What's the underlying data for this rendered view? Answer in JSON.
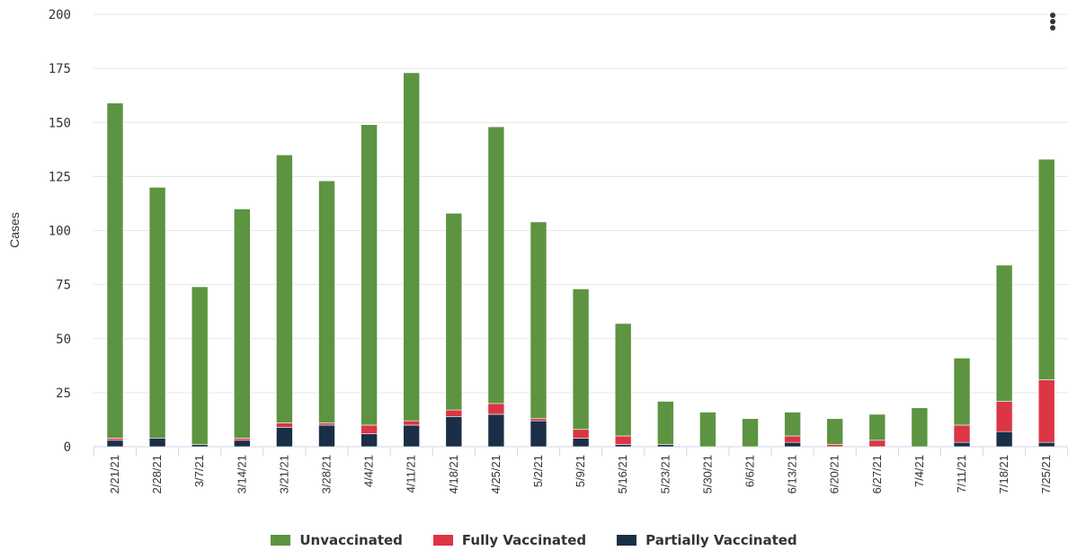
{
  "chart_data": {
    "type": "bar",
    "stacked": true,
    "title": "",
    "xlabel": "",
    "ylabel": "Cases",
    "ylim": [
      0,
      200
    ],
    "yticks": [
      0,
      25,
      50,
      75,
      100,
      125,
      150,
      175,
      200
    ],
    "grid": true,
    "legend_position": "bottom-center",
    "categories": [
      "2/21/21",
      "2/28/21",
      "3/7/21",
      "3/14/21",
      "3/21/21",
      "3/28/21",
      "4/4/21",
      "4/11/21",
      "4/18/21",
      "4/25/21",
      "5/2/21",
      "5/9/21",
      "5/16/21",
      "5/23/21",
      "5/30/21",
      "6/6/21",
      "6/13/21",
      "6/20/21",
      "6/27/21",
      "7/4/21",
      "7/11/21",
      "7/18/21",
      "7/25/21"
    ],
    "series": [
      {
        "name": "Partially Vaccinated",
        "color": "#1a2f47",
        "values": [
          3,
          4,
          1,
          3,
          9,
          10,
          6,
          10,
          14,
          15,
          12,
          4,
          1,
          1,
          0,
          0,
          2,
          0,
          0,
          0,
          2,
          7,
          2
        ]
      },
      {
        "name": "Fully Vaccinated",
        "color": "#dc3545",
        "values": [
          1,
          0,
          0,
          1,
          2,
          1,
          4,
          2,
          3,
          5,
          1,
          4,
          4,
          0,
          0,
          0,
          3,
          1,
          3,
          0,
          8,
          14,
          29
        ]
      },
      {
        "name": "Unvaccinated",
        "color": "#5c9441",
        "values": [
          155,
          116,
          73,
          106,
          124,
          112,
          139,
          161,
          91,
          128,
          91,
          65,
          52,
          20,
          16,
          13,
          11,
          12,
          12,
          18,
          31,
          63,
          102
        ]
      }
    ]
  },
  "legend_order": [
    "Unvaccinated",
    "Fully Vaccinated",
    "Partially Vaccinated"
  ],
  "menu": {
    "icon": "context-menu-icon"
  }
}
